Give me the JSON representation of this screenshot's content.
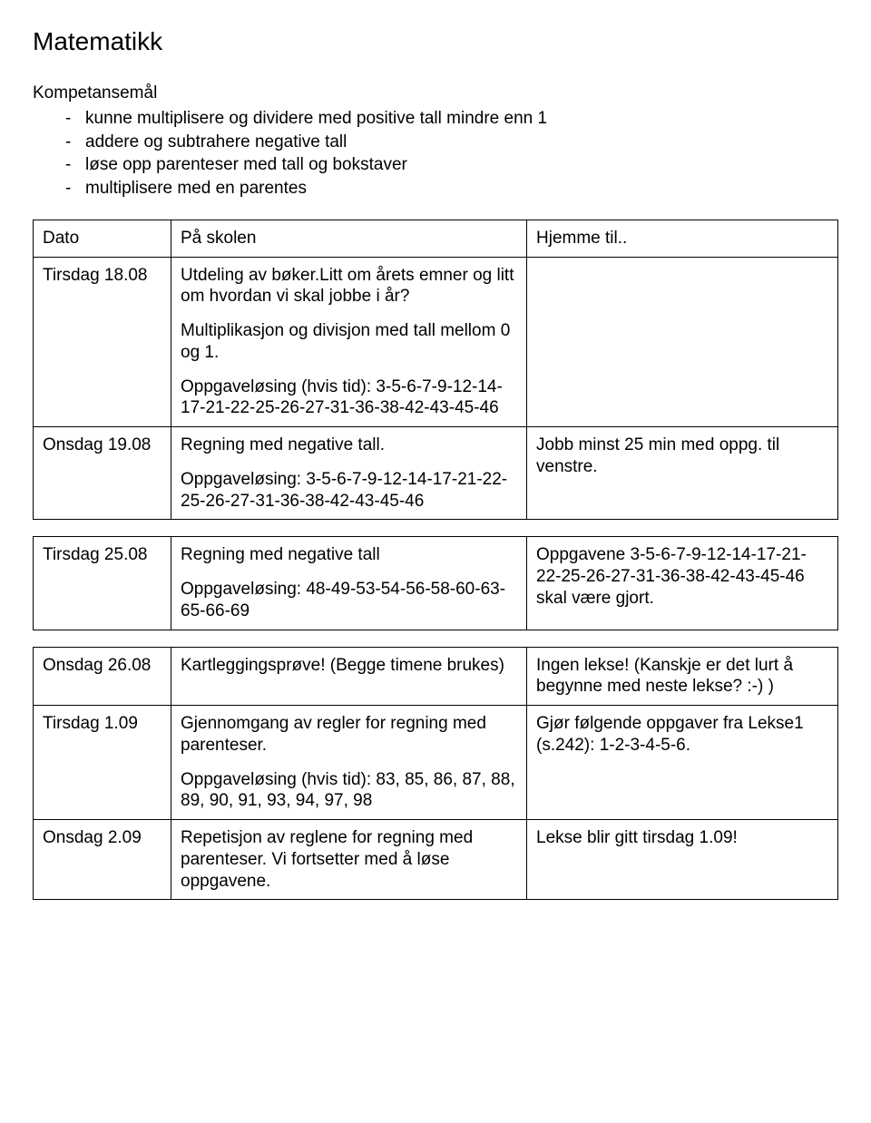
{
  "title": "Matematikk",
  "goals_label": "Kompetansemål",
  "goals": [
    "kunne multiplisere og dividere med positive tall mindre enn 1",
    "addere og subtrahere negative tall",
    "løse opp parenteser med tall og bokstaver",
    "multiplisere med en parentes"
  ],
  "header": {
    "date": "Dato",
    "school": "På skolen",
    "home": "Hjemme til.."
  },
  "t1": {
    "r1c0": "Tirsdag 18.08",
    "r1c1a": "Utdeling av bøker.Litt om årets emner og litt om hvordan vi skal jobbe i år?",
    "r1c1b": "Multiplikasjon og divisjon med tall mellom 0 og 1.",
    "r1c1c": "Oppgaveløsing (hvis tid): 3-5-6-7-9-12-14-17-21-22-25-26-27-31-36-38-42-43-45-46",
    "r1c2": "",
    "r2c0": "Onsdag 19.08",
    "r2c1a": "Regning med negative tall.",
    "r2c1b": "Oppgaveløsing: 3-5-6-7-9-12-14-17-21-22-25-26-27-31-36-38-42-43-45-46",
    "r2c2": "Jobb minst 25 min med oppg. til venstre."
  },
  "t2": {
    "r1c0": "Tirsdag 25.08",
    "r1c1a": "Regning med negative tall",
    "r1c1b": "Oppgaveløsing: 48-49-53-54-56-58-60-63-65-66-69",
    "r1c2": "Oppgavene 3-5-6-7-9-12-14-17-21-22-25-26-27-31-36-38-42-43-45-46 skal være gjort."
  },
  "t3": {
    "r1c0": "Onsdag 26.08",
    "r1c1": "Kartleggingsprøve! (Begge timene brukes)",
    "r1c2": "Ingen lekse! (Kanskje er det lurt å begynne med neste lekse? :-) )",
    "r2c0": "Tirsdag 1.09",
    "r2c1a": "Gjennomgang av regler for regning med parenteser.",
    "r2c1b": "Oppgaveløsing (hvis tid): 83, 85, 86, 87, 88, 89, 90, 91, 93, 94, 97, 98",
    "r2c2": "Gjør følgende oppgaver fra Lekse1 (s.242): 1-2-3-4-5-6.",
    "r3c0": "Onsdag 2.09",
    "r3c1": "Repetisjon av reglene for regning med parenteser. Vi fortsetter med å løse oppgavene.",
    "r3c2": "Lekse blir gitt tirsdag 1.09!"
  }
}
